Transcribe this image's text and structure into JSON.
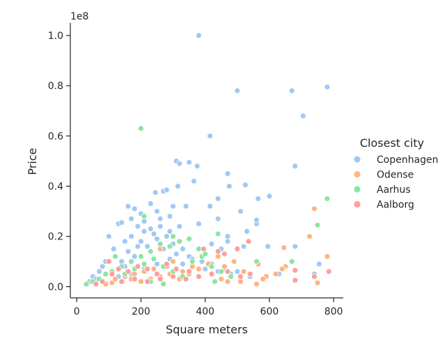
{
  "chart_data": {
    "type": "scatter",
    "title": "",
    "xlabel": "Square meters",
    "ylabel": "Price",
    "y_offset_label": "1e8",
    "xlim": [
      -20,
      830
    ],
    "ylim": [
      -0.045,
      1.05
    ],
    "x_ticks": [
      0,
      200,
      400,
      600,
      800
    ],
    "x_tick_labels": [
      "0",
      "200",
      "400",
      "600",
      "800"
    ],
    "y_ticks": [
      0.0,
      0.2,
      0.4,
      0.6,
      0.8,
      1.0
    ],
    "y_tick_labels": [
      "0.0",
      "0.2",
      "0.4",
      "0.6",
      "0.8",
      "1.0"
    ],
    "grid": false,
    "legend": {
      "title": "Closest city",
      "position": "right"
    },
    "series": [
      {
        "name": "Copenhagen",
        "color": "#a1c9f4",
        "points": [
          [
            380,
            1.0
          ],
          [
            500,
            0.78
          ],
          [
            670,
            0.78
          ],
          [
            780,
            0.795
          ],
          [
            705,
            0.68
          ],
          [
            415,
            0.6
          ],
          [
            310,
            0.5
          ],
          [
            350,
            0.495
          ],
          [
            320,
            0.49
          ],
          [
            375,
            0.48
          ],
          [
            680,
            0.48
          ],
          [
            470,
            0.45
          ],
          [
            365,
            0.42
          ],
          [
            475,
            0.4
          ],
          [
            525,
            0.405
          ],
          [
            565,
            0.35
          ],
          [
            600,
            0.36
          ],
          [
            440,
            0.35
          ],
          [
            415,
            0.32
          ],
          [
            510,
            0.3
          ],
          [
            270,
            0.38
          ],
          [
            280,
            0.385
          ],
          [
            245,
            0.375
          ],
          [
            315,
            0.4
          ],
          [
            160,
            0.32
          ],
          [
            180,
            0.31
          ],
          [
            230,
            0.33
          ],
          [
            300,
            0.32
          ],
          [
            340,
            0.32
          ],
          [
            440,
            0.27
          ],
          [
            130,
            0.25
          ],
          [
            140,
            0.255
          ],
          [
            170,
            0.27
          ],
          [
            200,
            0.29
          ],
          [
            250,
            0.3
          ],
          [
            290,
            0.28
          ],
          [
            470,
            0.2
          ],
          [
            530,
            0.22
          ],
          [
            560,
            0.25
          ],
          [
            560,
            0.265
          ],
          [
            520,
            0.16
          ],
          [
            595,
            0.16
          ],
          [
            680,
            0.16
          ],
          [
            470,
            0.18
          ],
          [
            420,
            0.17
          ],
          [
            630,
            0.05
          ],
          [
            740,
            0.05
          ],
          [
            755,
            0.09
          ],
          [
            450,
            0.15
          ],
          [
            380,
            0.25
          ],
          [
            320,
            0.24
          ],
          [
            100,
            0.2
          ],
          [
            115,
            0.15
          ],
          [
            150,
            0.18
          ],
          [
            210,
            0.22
          ],
          [
            260,
            0.24
          ],
          [
            240,
            0.21
          ],
          [
            190,
            0.16
          ],
          [
            230,
            0.14
          ],
          [
            270,
            0.15
          ],
          [
            310,
            0.13
          ],
          [
            350,
            0.12
          ],
          [
            390,
            0.1
          ],
          [
            420,
            0.09
          ],
          [
            460,
            0.07
          ],
          [
            500,
            0.06
          ],
          [
            90,
            0.1
          ],
          [
            70,
            0.06
          ],
          [
            50,
            0.04
          ],
          [
            40,
            0.02
          ],
          [
            30,
            0.01
          ],
          [
            60,
            0.03
          ],
          [
            80,
            0.08
          ],
          [
            120,
            0.12
          ],
          [
            140,
            0.1
          ],
          [
            160,
            0.14
          ],
          [
            180,
            0.12
          ],
          [
            200,
            0.18
          ],
          [
            220,
            0.16
          ],
          [
            250,
            0.19
          ],
          [
            280,
            0.2
          ],
          [
            300,
            0.17
          ],
          [
            330,
            0.15
          ],
          [
            360,
            0.11
          ],
          [
            400,
            0.07
          ],
          [
            440,
            0.06
          ],
          [
            480,
            0.05
          ],
          [
            540,
            0.04
          ],
          [
            110,
            0.06
          ],
          [
            150,
            0.08
          ],
          [
            170,
            0.2
          ],
          [
            190,
            0.24
          ],
          [
            210,
            0.26
          ],
          [
            230,
            0.23
          ],
          [
            260,
            0.27
          ],
          [
            290,
            0.22
          ],
          [
            130,
            0.04
          ],
          [
            170,
            0.05
          ],
          [
            210,
            0.07
          ],
          [
            250,
            0.09
          ],
          [
            290,
            0.11
          ],
          [
            330,
            0.09
          ]
        ]
      },
      {
        "name": "Odense",
        "color": "#ffb482",
        "points": [
          [
            740,
            0.31
          ],
          [
            725,
            0.2
          ],
          [
            780,
            0.12
          ],
          [
            645,
            0.155
          ],
          [
            565,
            0.09
          ],
          [
            650,
            0.08
          ],
          [
            670,
            0.1
          ],
          [
            590,
            0.04
          ],
          [
            620,
            0.05
          ],
          [
            750,
            0.015
          ],
          [
            580,
            0.03
          ],
          [
            540,
            0.05
          ],
          [
            520,
            0.06
          ],
          [
            490,
            0.1
          ],
          [
            460,
            0.08
          ],
          [
            500,
            0.15
          ],
          [
            440,
            0.12
          ],
          [
            410,
            0.09
          ],
          [
            380,
            0.07
          ],
          [
            350,
            0.05
          ],
          [
            320,
            0.03
          ],
          [
            290,
            0.05
          ],
          [
            260,
            0.04
          ],
          [
            230,
            0.03
          ],
          [
            200,
            0.02
          ],
          [
            170,
            0.03
          ],
          [
            140,
            0.02
          ],
          [
            110,
            0.015
          ],
          [
            90,
            0.01
          ],
          [
            60,
            0.01
          ],
          [
            260,
            0.15
          ],
          [
            300,
            0.1
          ],
          [
            280,
            0.08
          ],
          [
            240,
            0.07
          ],
          [
            210,
            0.06
          ],
          [
            180,
            0.05
          ],
          [
            150,
            0.04
          ],
          [
            120,
            0.03
          ],
          [
            330,
            0.06
          ],
          [
            360,
            0.08
          ],
          [
            390,
            0.12
          ],
          [
            420,
            0.05
          ],
          [
            450,
            0.03
          ],
          [
            470,
            0.02
          ],
          [
            510,
            0.02
          ],
          [
            640,
            0.07
          ],
          [
            560,
            0.01
          ]
        ]
      },
      {
        "name": "Aarhus",
        "color": "#8de5a1",
        "points": [
          [
            200,
            0.63
          ],
          [
            780,
            0.35
          ],
          [
            750,
            0.245
          ],
          [
            440,
            0.21
          ],
          [
            210,
            0.28
          ],
          [
            350,
            0.19
          ],
          [
            320,
            0.18
          ],
          [
            290,
            0.16
          ],
          [
            560,
            0.1
          ],
          [
            670,
            0.1
          ],
          [
            300,
            0.2
          ],
          [
            260,
            0.17
          ],
          [
            230,
            0.14
          ],
          [
            200,
            0.12
          ],
          [
            170,
            0.1
          ],
          [
            140,
            0.08
          ],
          [
            110,
            0.06
          ],
          [
            90,
            0.05
          ],
          [
            70,
            0.03
          ],
          [
            50,
            0.02
          ],
          [
            30,
            0.01
          ],
          [
            120,
            0.12
          ],
          [
            150,
            0.05
          ],
          [
            180,
            0.07
          ],
          [
            210,
            0.09
          ],
          [
            240,
            0.11
          ],
          [
            270,
            0.08
          ],
          [
            300,
            0.06
          ],
          [
            330,
            0.04
          ],
          [
            360,
            0.1
          ],
          [
            390,
            0.12
          ],
          [
            420,
            0.08
          ],
          [
            450,
            0.06
          ],
          [
            480,
            0.04
          ],
          [
            380,
            0.15
          ],
          [
            400,
            0.13
          ],
          [
            430,
            0.02
          ],
          [
            230,
            0.02
          ],
          [
            270,
            0.01
          ]
        ]
      },
      {
        "name": "Aalborg",
        "color": "#ff9f9b",
        "points": [
          [
            785,
            0.06
          ],
          [
            680,
            0.065
          ],
          [
            680,
            0.025
          ],
          [
            740,
            0.04
          ],
          [
            535,
            0.18
          ],
          [
            500,
            0.15
          ],
          [
            460,
            0.13
          ],
          [
            440,
            0.14
          ],
          [
            395,
            0.15
          ],
          [
            540,
            0.05
          ],
          [
            510,
            0.04
          ],
          [
            470,
            0.06
          ],
          [
            420,
            0.05
          ],
          [
            380,
            0.04
          ],
          [
            340,
            0.03
          ],
          [
            300,
            0.04
          ],
          [
            260,
            0.03
          ],
          [
            220,
            0.02
          ],
          [
            180,
            0.03
          ],
          [
            140,
            0.02
          ],
          [
            100,
            0.1
          ],
          [
            110,
            0.05
          ],
          [
            130,
            0.07
          ],
          [
            160,
            0.06
          ],
          [
            190,
            0.08
          ],
          [
            220,
            0.07
          ],
          [
            250,
            0.05
          ],
          [
            280,
            0.09
          ],
          [
            310,
            0.07
          ],
          [
            350,
            0.06
          ],
          [
            80,
            0.02
          ],
          [
            60,
            0.01
          ]
        ]
      }
    ]
  }
}
